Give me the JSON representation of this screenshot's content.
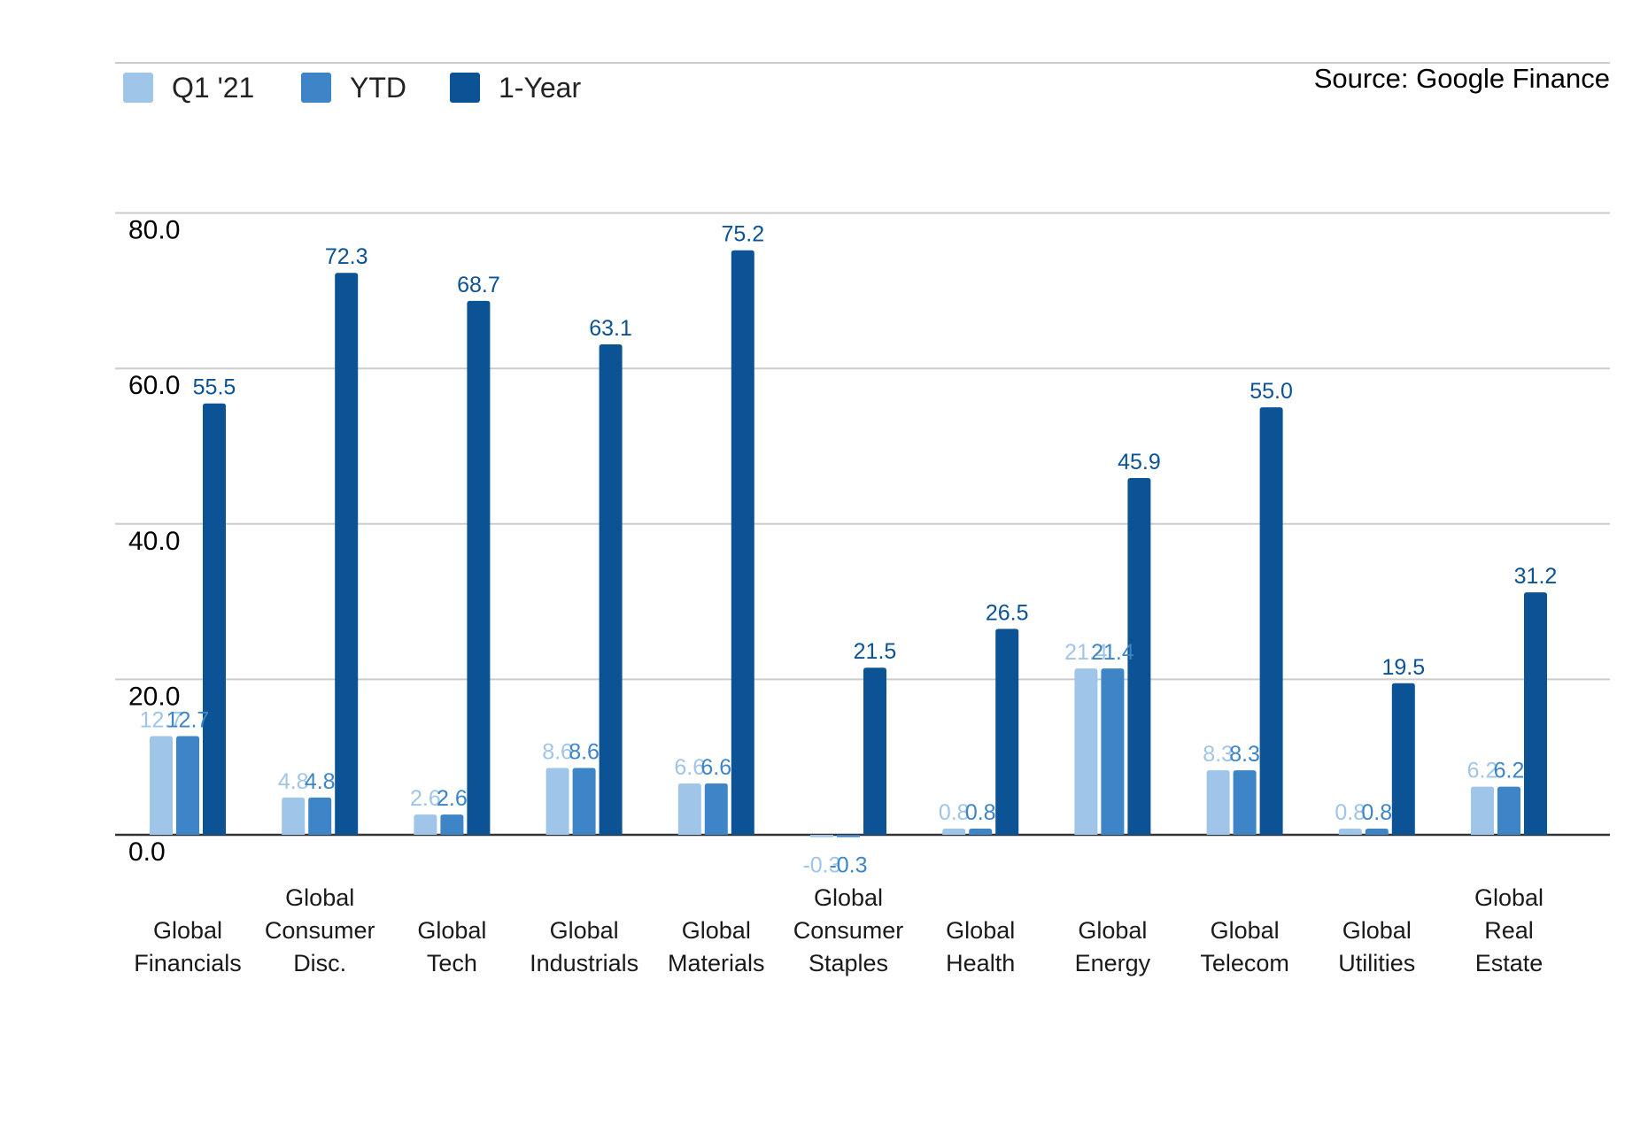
{
  "source": "Source: Google Finance",
  "colors": {
    "q1": "#9fc5e8",
    "ytd": "#3d85c6",
    "oneyear": "#0b5394",
    "grid": "#cccccc",
    "baseline": "#333333"
  },
  "chart_data": {
    "type": "bar",
    "title": "",
    "xlabel": "",
    "ylabel": "",
    "ylim": [
      -4,
      80
    ],
    "yticks": [
      "0.0",
      "20.0",
      "40.0",
      "60.0",
      "80.0"
    ],
    "grid": true,
    "legend_position": "top-left",
    "categories": [
      [
        "Global",
        "Financials"
      ],
      [
        "Global",
        "Consumer",
        "Disc."
      ],
      [
        "Global",
        "Tech"
      ],
      [
        "Global",
        "Industrials"
      ],
      [
        "Global",
        "Materials"
      ],
      [
        "Global",
        "Consumer",
        "Staples"
      ],
      [
        "Global",
        "Health"
      ],
      [
        "Global",
        "Energy"
      ],
      [
        "Global",
        "Telecom"
      ],
      [
        "Global",
        "Utilities"
      ],
      [
        "Global",
        "Real",
        "Estate"
      ]
    ],
    "series": [
      {
        "name": "Q1 '21",
        "color_key": "q1",
        "values": [
          12.7,
          4.8,
          2.6,
          8.6,
          6.6,
          -0.3,
          0.8,
          21.4,
          8.3,
          0.8,
          6.2
        ],
        "labels": [
          "12.7",
          "4.8",
          "2.6",
          "8.6",
          "6.6",
          "-0.3",
          "0.8",
          "21.4",
          "8.3",
          "0.8",
          "6.2"
        ]
      },
      {
        "name": "YTD",
        "color_key": "ytd",
        "values": [
          12.7,
          4.8,
          2.6,
          8.6,
          6.6,
          -0.3,
          0.8,
          21.4,
          8.3,
          0.8,
          6.2
        ],
        "labels": [
          "12.7",
          "4.8",
          "2.6",
          "8.6",
          "6.6",
          "-0.3",
          "0.8",
          "21.4",
          "8.3",
          "0.8",
          "6.2"
        ]
      },
      {
        "name": "1-Year",
        "color_key": "oneyear",
        "values": [
          55.5,
          72.3,
          68.7,
          63.1,
          75.2,
          21.5,
          26.5,
          45.9,
          55.0,
          19.5,
          31.2
        ],
        "labels": [
          "55.5",
          "72.3",
          "68.7",
          "63.1",
          "75.2",
          "21.5",
          "26.5",
          "45.9",
          "55.0",
          "19.5",
          "31.2"
        ]
      }
    ]
  }
}
